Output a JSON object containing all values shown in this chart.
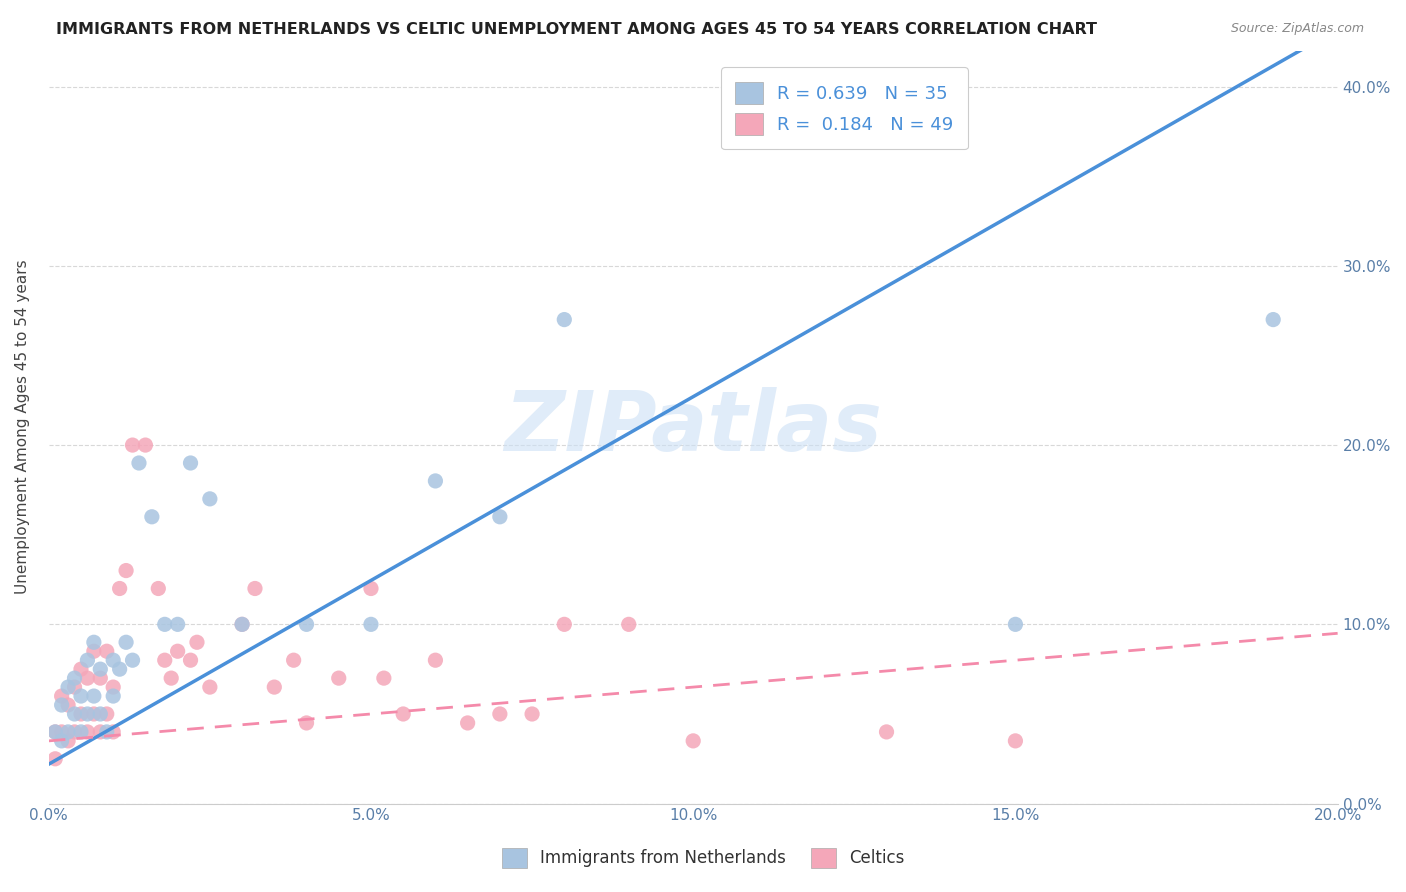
{
  "title": "IMMIGRANTS FROM NETHERLANDS VS CELTIC UNEMPLOYMENT AMONG AGES 45 TO 54 YEARS CORRELATION CHART",
  "source": "Source: ZipAtlas.com",
  "ylabel": "Unemployment Among Ages 45 to 54 years",
  "legend_label1": "Immigrants from Netherlands",
  "legend_label2": "Celtics",
  "R1": "0.639",
  "N1": "35",
  "R2": "0.184",
  "N2": "49",
  "color1": "#a8c4e0",
  "color2": "#f4a7b9",
  "line1_color": "#4a90d9",
  "line2_color": "#f48aaa",
  "watermark_text": "ZIPatlas",
  "nl_x": [
    0.001,
    0.002,
    0.002,
    0.003,
    0.003,
    0.004,
    0.004,
    0.005,
    0.005,
    0.006,
    0.006,
    0.007,
    0.007,
    0.008,
    0.008,
    0.009,
    0.01,
    0.01,
    0.011,
    0.012,
    0.013,
    0.014,
    0.016,
    0.018,
    0.02,
    0.022,
    0.025,
    0.03,
    0.04,
    0.05,
    0.06,
    0.07,
    0.08,
    0.15,
    0.19
  ],
  "nl_y": [
    0.04,
    0.035,
    0.055,
    0.04,
    0.065,
    0.05,
    0.07,
    0.04,
    0.06,
    0.05,
    0.08,
    0.06,
    0.09,
    0.05,
    0.075,
    0.04,
    0.06,
    0.08,
    0.075,
    0.09,
    0.08,
    0.19,
    0.16,
    0.1,
    0.1,
    0.19,
    0.17,
    0.1,
    0.1,
    0.1,
    0.18,
    0.16,
    0.27,
    0.1,
    0.27
  ],
  "cel_x": [
    0.001,
    0.001,
    0.002,
    0.002,
    0.003,
    0.003,
    0.004,
    0.004,
    0.005,
    0.005,
    0.006,
    0.006,
    0.007,
    0.007,
    0.008,
    0.008,
    0.009,
    0.009,
    0.01,
    0.01,
    0.011,
    0.012,
    0.013,
    0.015,
    0.017,
    0.018,
    0.019,
    0.02,
    0.022,
    0.023,
    0.025,
    0.03,
    0.032,
    0.035,
    0.038,
    0.04,
    0.045,
    0.05,
    0.052,
    0.055,
    0.06,
    0.065,
    0.07,
    0.075,
    0.08,
    0.09,
    0.1,
    0.13,
    0.15
  ],
  "cel_y": [
    0.025,
    0.04,
    0.04,
    0.06,
    0.035,
    0.055,
    0.04,
    0.065,
    0.05,
    0.075,
    0.04,
    0.07,
    0.05,
    0.085,
    0.04,
    0.07,
    0.05,
    0.085,
    0.04,
    0.065,
    0.12,
    0.13,
    0.2,
    0.2,
    0.12,
    0.08,
    0.07,
    0.085,
    0.08,
    0.09,
    0.065,
    0.1,
    0.12,
    0.065,
    0.08,
    0.045,
    0.07,
    0.12,
    0.07,
    0.05,
    0.08,
    0.045,
    0.05,
    0.05,
    0.1,
    0.1,
    0.035,
    0.04,
    0.035
  ],
  "xlim": [
    0.0,
    0.2
  ],
  "ylim": [
    0.0,
    0.42
  ],
  "x_ticks": [
    0.0,
    0.05,
    0.1,
    0.15,
    0.2
  ],
  "y_ticks": [
    0.0,
    0.1,
    0.2,
    0.3,
    0.4
  ],
  "background_color": "#ffffff",
  "grid_color": "#d8d8d8",
  "nl_line_slope": 2.05,
  "nl_line_intercept": 0.022,
  "cel_line_slope": 0.3,
  "cel_line_intercept": 0.035
}
